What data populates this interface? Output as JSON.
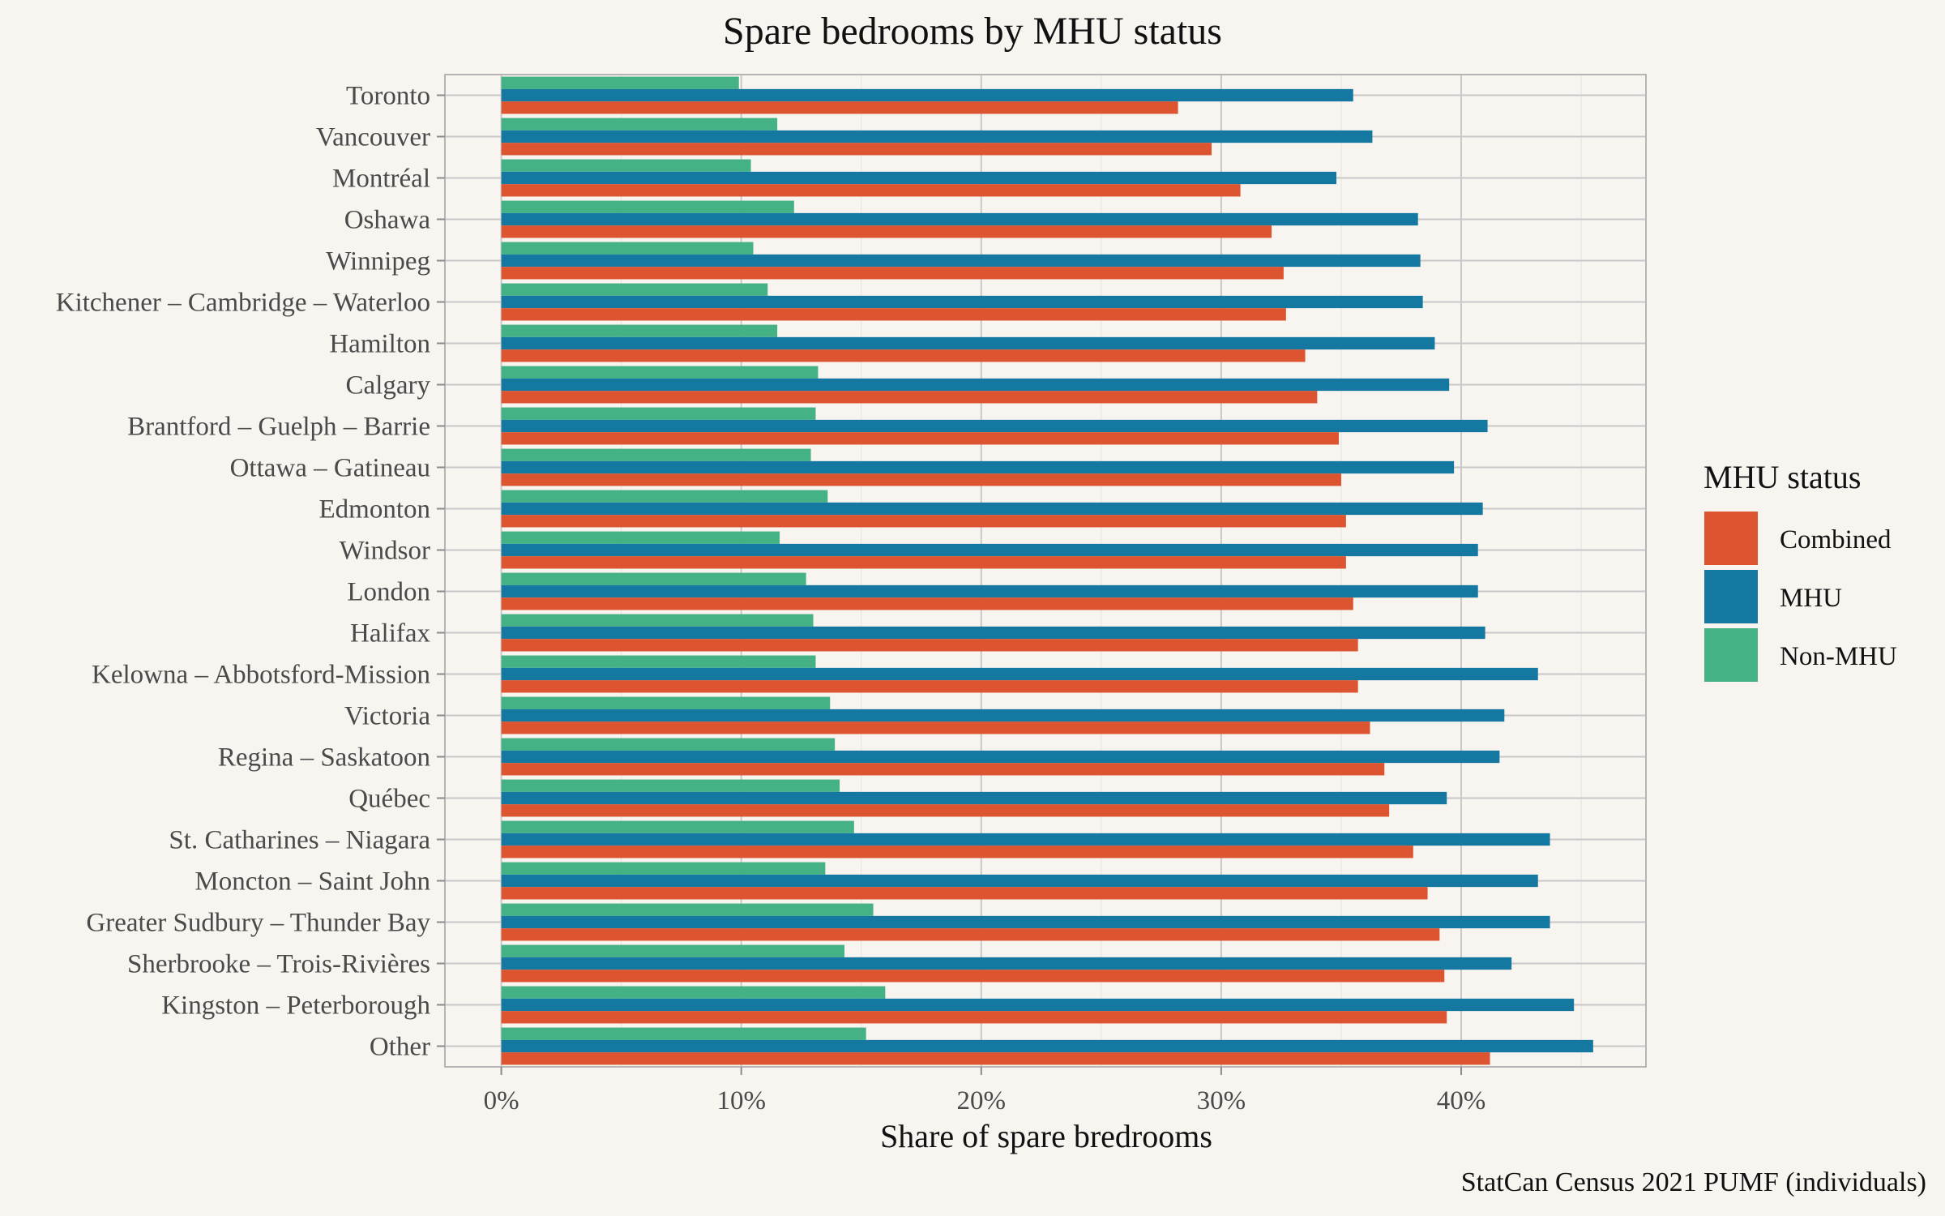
{
  "chart_data": {
    "type": "bar",
    "orientation": "horizontal",
    "title": "Spare bedrooms by MHU status",
    "xlabel": "Share of spare bredrooms",
    "ylabel": "",
    "caption": "StatCan Census 2021 PUMF (individuals)",
    "xlim": [
      -0.0235,
      0.477
    ],
    "x_ticks": [
      0,
      0.1,
      0.2,
      0.3,
      0.4
    ],
    "x_tick_labels": [
      "0%",
      "10%",
      "20%",
      "30%",
      "40%"
    ],
    "grid": true,
    "legend": {
      "title": "MHU status",
      "position": "right"
    },
    "categories": [
      "Toronto",
      "Vancouver",
      "Montréal",
      "Oshawa",
      "Winnipeg",
      "Kitchener – Cambridge – Waterloo",
      "Hamilton",
      "Calgary",
      "Brantford – Guelph – Barrie",
      "Ottawa – Gatineau",
      "Edmonton",
      "Windsor",
      "London",
      "Halifax",
      "Kelowna – Abbotsford-Mission",
      "Victoria",
      "Regina – Saskatoon",
      "Québec",
      "St. Catharines – Niagara",
      "Moncton – Saint John",
      "Greater Sudbury – Thunder Bay",
      "Sherbrooke – Trois-Rivières",
      "Kingston – Peterborough",
      "Other"
    ],
    "series": [
      {
        "name": "Combined",
        "color": "#dc5430",
        "values": [
          0.282,
          0.296,
          0.308,
          0.321,
          0.326,
          0.327,
          0.335,
          0.34,
          0.349,
          0.35,
          0.352,
          0.352,
          0.355,
          0.357,
          0.357,
          0.362,
          0.368,
          0.37,
          0.38,
          0.386,
          0.391,
          0.393,
          0.394,
          0.412
        ]
      },
      {
        "name": "MHU",
        "color": "#1578a0",
        "values": [
          0.355,
          0.363,
          0.348,
          0.382,
          0.383,
          0.384,
          0.389,
          0.395,
          0.411,
          0.397,
          0.409,
          0.407,
          0.407,
          0.41,
          0.432,
          0.418,
          0.416,
          0.394,
          0.437,
          0.432,
          0.437,
          0.421,
          0.447,
          0.455
        ]
      },
      {
        "name": "Non-MHU",
        "color": "#45b285",
        "values": [
          0.099,
          0.115,
          0.104,
          0.122,
          0.105,
          0.111,
          0.115,
          0.132,
          0.131,
          0.129,
          0.136,
          0.116,
          0.127,
          0.13,
          0.131,
          0.137,
          0.139,
          0.141,
          0.147,
          0.135,
          0.155,
          0.143,
          0.16,
          0.152
        ]
      }
    ]
  }
}
